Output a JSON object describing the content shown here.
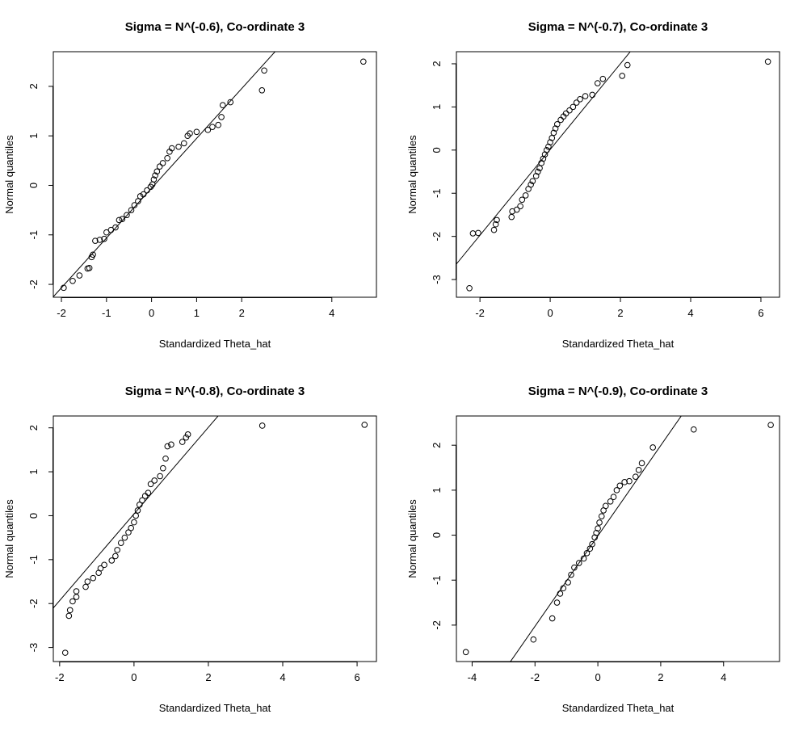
{
  "chart_data": [
    {
      "type": "scatter",
      "title": "Sigma = N^(-0.6), Co-ordinate 3",
      "xlabel": "Standardized Theta_hat",
      "ylabel": "Normal quantiles",
      "color": "#000000",
      "xlim": [
        -2.18,
        4.99
      ],
      "ylim": [
        -2.26,
        2.7
      ],
      "xticks": [
        -2,
        -1,
        0,
        1,
        2,
        4
      ],
      "yticks": [
        -2,
        -1,
        0,
        1,
        2
      ],
      "line": {
        "intercept": -0.057,
        "slope": 1.006
      },
      "x": [
        -1.95,
        -1.75,
        -1.6,
        -1.42,
        -1.38,
        -1.33,
        -1.3,
        -1.25,
        -1.15,
        -1.05,
        -1.0,
        -0.9,
        -0.8,
        -0.72,
        -0.65,
        -0.55,
        -0.45,
        -0.38,
        -0.3,
        -0.25,
        -0.18,
        -0.1,
        -0.02,
        0.02,
        0.05,
        0.08,
        0.12,
        0.18,
        0.25,
        0.35,
        0.4,
        0.45,
        0.6,
        0.72,
        0.8,
        0.85,
        1.0,
        1.25,
        1.35,
        1.48,
        1.55,
        1.58,
        1.75,
        2.45,
        2.5,
        4.7
      ],
      "values": [
        -2.07,
        -1.93,
        -1.82,
        -1.68,
        -1.67,
        -1.45,
        -1.4,
        -1.12,
        -1.1,
        -1.08,
        -0.95,
        -0.9,
        -0.85,
        -0.7,
        -0.68,
        -0.6,
        -0.5,
        -0.4,
        -0.32,
        -0.22,
        -0.18,
        -0.1,
        -0.03,
        0.02,
        0.12,
        0.2,
        0.28,
        0.38,
        0.45,
        0.55,
        0.68,
        0.75,
        0.78,
        0.85,
        1.0,
        1.05,
        1.08,
        1.12,
        1.18,
        1.22,
        1.38,
        1.62,
        1.68,
        1.92,
        2.32,
        2.5
      ]
    },
    {
      "type": "scatter",
      "title": "Sigma = N^(-0.7), Co-ordinate 3",
      "xlabel": "Standardized Theta_hat",
      "ylabel": "Normal quantiles",
      "color": "#000000",
      "xlim": [
        -2.67,
        6.53
      ],
      "ylim": [
        -3.41,
        2.28
      ],
      "xticks": [
        -2,
        0,
        2,
        4,
        6
      ],
      "yticks": [
        -3,
        -2,
        -1,
        0,
        1,
        2
      ],
      "line": {
        "intercept": 0.014,
        "slope": 0.994
      },
      "x": [
        -2.3,
        -2.2,
        -2.05,
        -1.6,
        -1.55,
        -1.52,
        -1.1,
        -1.08,
        -0.95,
        -0.85,
        -0.8,
        -0.7,
        -0.62,
        -0.55,
        -0.5,
        -0.4,
        -0.35,
        -0.3,
        -0.25,
        -0.2,
        -0.15,
        -0.1,
        -0.05,
        0.0,
        0.05,
        0.1,
        0.15,
        0.2,
        0.3,
        0.38,
        0.45,
        0.55,
        0.65,
        0.75,
        0.85,
        1.0,
        1.2,
        1.35,
        1.5,
        2.05,
        2.2,
        6.2
      ],
      "values": [
        -3.2,
        -1.93,
        -1.92,
        -1.85,
        -1.72,
        -1.62,
        -1.55,
        -1.42,
        -1.38,
        -1.3,
        -1.15,
        -1.05,
        -0.9,
        -0.8,
        -0.72,
        -0.6,
        -0.5,
        -0.42,
        -0.3,
        -0.2,
        -0.1,
        0.0,
        0.08,
        0.18,
        0.28,
        0.4,
        0.5,
        0.6,
        0.7,
        0.78,
        0.85,
        0.92,
        1.0,
        1.1,
        1.18,
        1.25,
        1.28,
        1.55,
        1.65,
        1.72,
        1.97,
        2.05
      ]
    },
    {
      "type": "scatter",
      "title": "Sigma = N^(-0.8), Co-ordinate 3",
      "xlabel": "Standardized Theta_hat",
      "ylabel": "Normal quantiles",
      "color": "#000000",
      "xlim": [
        -2.17,
        6.52
      ],
      "ylim": [
        -3.32,
        2.27
      ],
      "xticks": [
        -2,
        0,
        2,
        4,
        6
      ],
      "yticks": [
        -3,
        -2,
        -1,
        0,
        1,
        2
      ],
      "line": {
        "intercept": 0.04,
        "slope": 0.986
      },
      "x": [
        -1.85,
        -1.75,
        -1.72,
        -1.65,
        -1.55,
        -1.55,
        -1.3,
        -1.25,
        -1.1,
        -0.95,
        -0.9,
        -0.8,
        -0.6,
        -0.5,
        -0.45,
        -0.35,
        -0.25,
        -0.15,
        -0.08,
        0.0,
        0.05,
        0.1,
        0.15,
        0.22,
        0.3,
        0.38,
        0.45,
        0.55,
        0.7,
        0.78,
        0.85,
        0.9,
        1.0,
        1.3,
        1.4,
        1.45,
        3.45,
        6.2
      ],
      "values": [
        -3.12,
        -2.28,
        -2.15,
        -1.95,
        -1.85,
        -1.72,
        -1.62,
        -1.5,
        -1.42,
        -1.3,
        -1.2,
        -1.12,
        -1.02,
        -0.92,
        -0.78,
        -0.62,
        -0.5,
        -0.38,
        -0.28,
        -0.15,
        0.0,
        0.12,
        0.25,
        0.35,
        0.45,
        0.52,
        0.72,
        0.8,
        0.9,
        1.08,
        1.3,
        1.58,
        1.62,
        1.68,
        1.78,
        1.85,
        2.05,
        2.07
      ]
    },
    {
      "type": "scatter",
      "title": "Sigma = N^(-0.9), Co-ordinate 3",
      "xlabel": "Standardized Theta_hat",
      "ylabel": "Normal quantiles",
      "color": "#000000",
      "xlim": [
        -4.5,
        5.78
      ],
      "ylim": [
        -2.81,
        2.65
      ],
      "xticks": [
        -4,
        -2,
        0,
        2,
        4
      ],
      "yticks": [
        -2,
        -1,
        0,
        1,
        2
      ],
      "line": {
        "intercept": -0.016,
        "slope": 1.005
      },
      "x": [
        -4.2,
        -2.05,
        -1.45,
        -1.3,
        -1.2,
        -1.1,
        -0.95,
        -0.85,
        -0.75,
        -0.6,
        -0.45,
        -0.35,
        -0.25,
        -0.18,
        -0.1,
        -0.05,
        0.0,
        0.05,
        0.12,
        0.18,
        0.25,
        0.4,
        0.5,
        0.6,
        0.7,
        0.85,
        1.0,
        1.2,
        1.3,
        1.4,
        1.75,
        3.05,
        5.5
      ],
      "values": [
        -2.6,
        -2.32,
        -1.85,
        -1.5,
        -1.3,
        -1.18,
        -1.05,
        -0.88,
        -0.72,
        -0.62,
        -0.52,
        -0.4,
        -0.3,
        -0.2,
        -0.05,
        0.05,
        0.15,
        0.28,
        0.42,
        0.55,
        0.65,
        0.75,
        0.85,
        1.0,
        1.1,
        1.18,
        1.2,
        1.3,
        1.45,
        1.6,
        1.95,
        2.35,
        2.45
      ]
    }
  ]
}
